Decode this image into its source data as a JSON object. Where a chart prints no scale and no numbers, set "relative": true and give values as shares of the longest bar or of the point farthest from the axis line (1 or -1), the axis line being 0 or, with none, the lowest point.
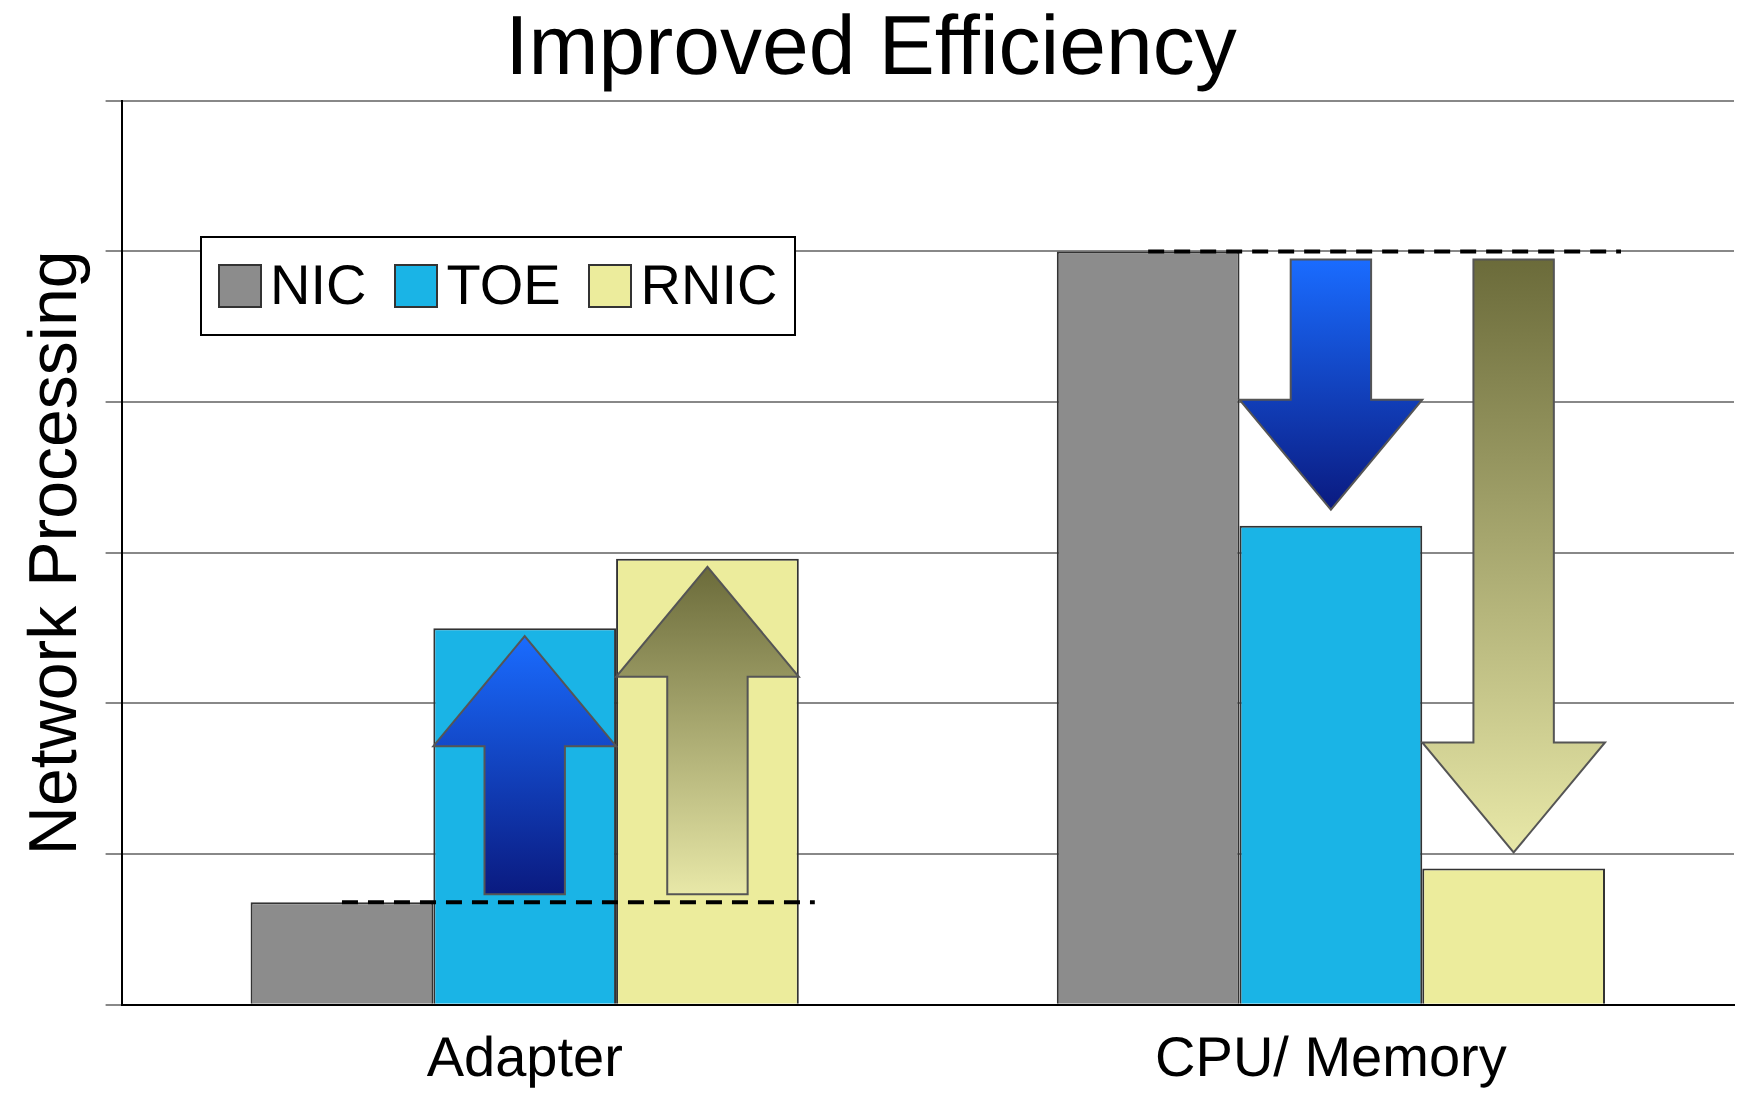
{
  "chart_data": {
    "type": "bar",
    "title": "Improved Efficiency",
    "ylabel": "Network Processing",
    "categories": [
      "Adapter",
      "CPU/ Memory"
    ],
    "relative": true,
    "grid": "y",
    "legend": "top left",
    "series": [
      {
        "name": "NIC",
        "color": "#8c8c8c",
        "values": [
          0.136,
          1
        ]
      },
      {
        "name": "TOE",
        "color": "#1ab4e6",
        "values": [
          0.5,
          0.636
        ]
      },
      {
        "name": "RNIC",
        "color": "#ecec9c",
        "values": [
          0.592,
          0.181
        ]
      }
    ]
  }
}
